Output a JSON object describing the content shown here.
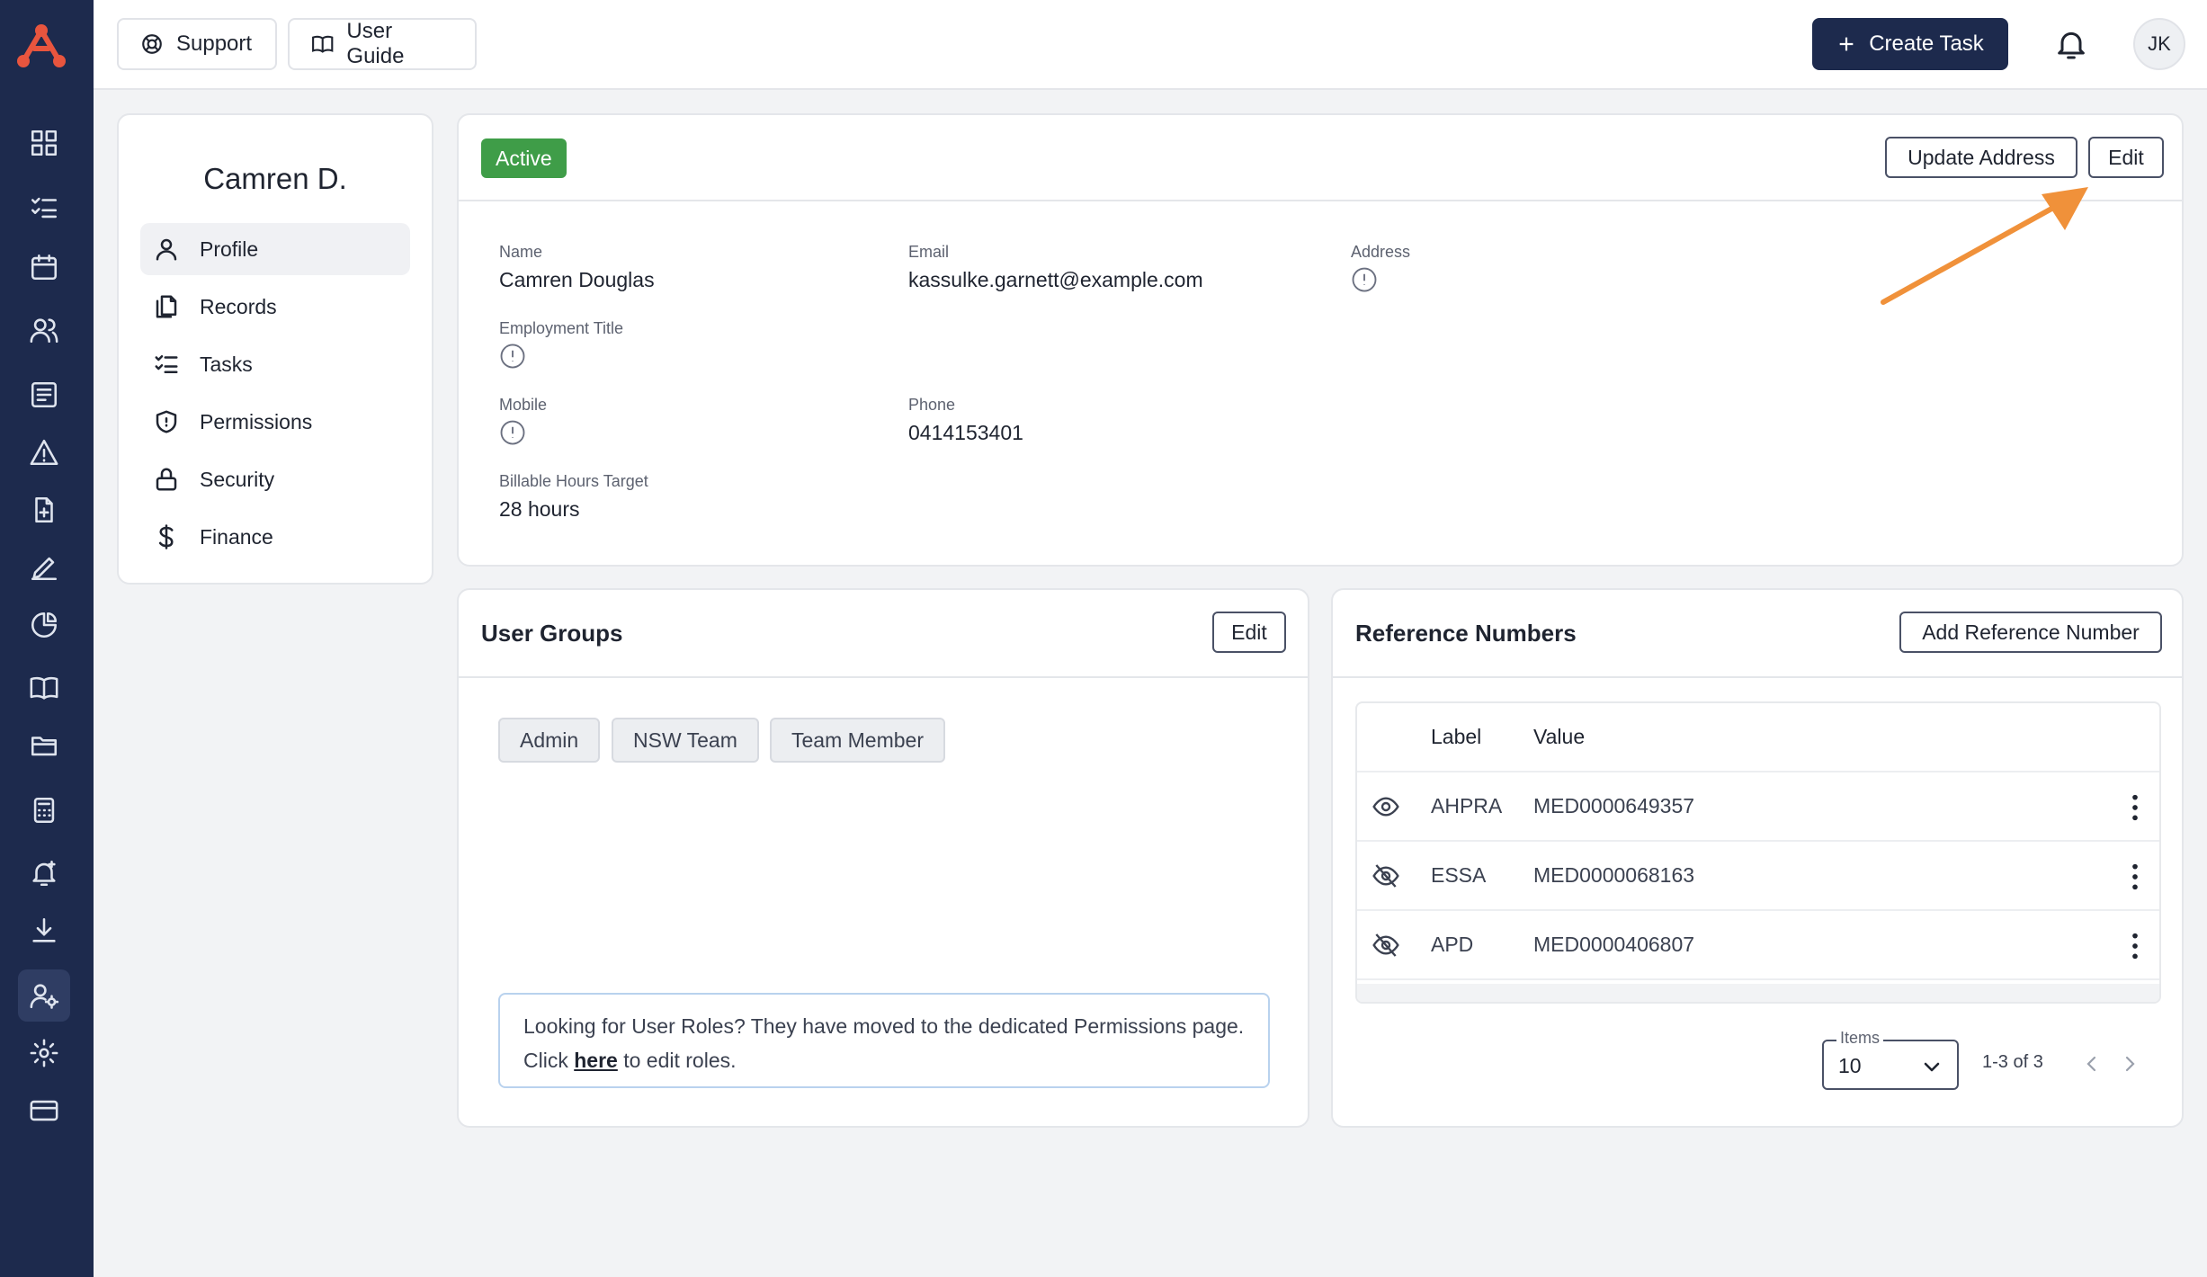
{
  "app": {
    "accent_color": "#1d2a4d",
    "highlight_color": "#f0913a",
    "nav_icons": [
      "dashboard-icon",
      "tasks-list-icon",
      "calendar-icon",
      "users-icon",
      "records-icon",
      "alert-triangle-icon",
      "document-add-icon",
      "signature-icon",
      "pie-chart-icon",
      "book-icon",
      "folder-icon",
      "calculator-icon",
      "bell-plus-icon",
      "download-icon",
      "user-settings-icon",
      "gear-icon",
      "credit-card-icon"
    ]
  },
  "topbar": {
    "support_label": "Support",
    "user_guide_label": "User Guide",
    "create_task_label": "Create Task",
    "avatar_initials": "JK"
  },
  "profile_nav": {
    "name": "Camren D.",
    "items": [
      {
        "label": "Profile",
        "icon": "user-icon"
      },
      {
        "label": "Records",
        "icon": "files-icon"
      },
      {
        "label": "Tasks",
        "icon": "checklist-icon"
      },
      {
        "label": "Permissions",
        "icon": "shield-icon"
      },
      {
        "label": "Security",
        "icon": "lock-icon"
      },
      {
        "label": "Finance",
        "icon": "dollar-icon"
      }
    ]
  },
  "details": {
    "status": "Active",
    "status_color": "#3f9d48",
    "update_address_label": "Update Address",
    "edit_label": "Edit",
    "fields": {
      "name_label": "Name",
      "name_value": "Camren Douglas",
      "email_label": "Email",
      "email_value": "kassulke.garnett@example.com",
      "address_label": "Address",
      "employment_title_label": "Employment Title",
      "mobile_label": "Mobile",
      "phone_label": "Phone",
      "phone_value": "0414153401",
      "billable_label": "Billable Hours Target",
      "billable_value": "28 hours"
    }
  },
  "user_groups": {
    "title": "User Groups",
    "edit_label": "Edit",
    "tags": [
      "Admin",
      "NSW Team",
      "Team Member"
    ],
    "notice_text": "Looking for User Roles? They have moved to the dedicated Permissions page. Click ",
    "notice_link": "here",
    "notice_suffix": " to edit roles."
  },
  "reference_numbers": {
    "title": "Reference Numbers",
    "add_label": "Add Reference Number",
    "columns": [
      "Label",
      "Value"
    ],
    "rows": [
      {
        "label": "AHPRA",
        "value": "MED0000649357",
        "visibility": "eye-icon"
      },
      {
        "label": "ESSA",
        "value": "MED0000068163",
        "visibility": "eye-off-icon"
      },
      {
        "label": "APD",
        "value": "MED0000406807",
        "visibility": "eye-off-icon"
      }
    ],
    "items_label": "Items",
    "items_value": "10",
    "range_text": "1-3 of 3"
  }
}
